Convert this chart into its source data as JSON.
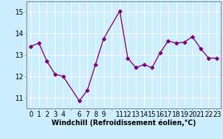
{
  "x": [
    0,
    1,
    2,
    3,
    4,
    6,
    7,
    8,
    9,
    11,
    12,
    13,
    14,
    15,
    16,
    17,
    18,
    19,
    20,
    21,
    22,
    23
  ],
  "y": [
    13.4,
    13.55,
    12.7,
    12.1,
    12.0,
    10.85,
    11.35,
    12.55,
    13.75,
    15.05,
    12.85,
    12.4,
    12.55,
    12.4,
    13.1,
    13.65,
    13.55,
    13.6,
    13.85,
    13.3,
    12.85,
    12.85
  ],
  "line_color": "#800080",
  "marker": "D",
  "marker_size": 2.5,
  "bg_color": "#cceeff",
  "grid_color": "#ffffff",
  "xlabel": "Windchill (Refroidissement éolien,°C)",
  "xlabel_fontsize": 7.0,
  "yticks": [
    11,
    12,
    13,
    14,
    15
  ],
  "ylim": [
    10.5,
    15.5
  ],
  "xlim": [
    -0.5,
    23.5
  ],
  "tick_fontsize": 7.0,
  "linewidth": 1.0
}
